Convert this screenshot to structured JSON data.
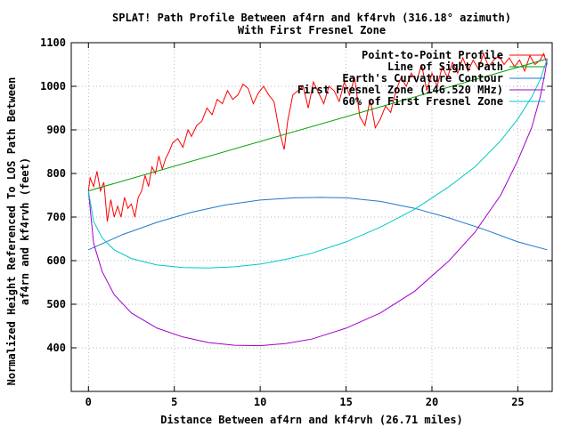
{
  "chart_data": {
    "type": "line",
    "title": "SPLAT! Path Profile Between af4rn and kf4rvh (316.18° azimuth)",
    "subtitle": "With First Fresnel Zone",
    "xlabel": "Distance Between af4rn and kf4rvh (26.71 miles)",
    "ylabel_line1": "Normalized Height Referenced To LOS Path Between",
    "ylabel_line2": "af4rn and kf4rvh (feet)",
    "xlim": [
      -1,
      27
    ],
    "ylim": [
      300,
      1100
    ],
    "xticks": [
      0,
      5,
      10,
      15,
      20,
      25
    ],
    "yticks": [
      400,
      500,
      600,
      700,
      800,
      900,
      1000,
      1100
    ],
    "grid": true,
    "legend_position": "top-right",
    "series": [
      {
        "name": "Point-to-Point Profile",
        "color": "#ff0000",
        "x": [
          0,
          0.1,
          0.3,
          0.5,
          0.7,
          0.9,
          1.1,
          1.3,
          1.5,
          1.7,
          1.9,
          2.1,
          2.3,
          2.5,
          2.7,
          2.9,
          3.1,
          3.3,
          3.5,
          3.7,
          3.9,
          4.1,
          4.3,
          4.5,
          4.7,
          4.9,
          5.2,
          5.5,
          5.8,
          6.0,
          6.3,
          6.6,
          6.9,
          7.2,
          7.5,
          7.8,
          8.1,
          8.4,
          8.7,
          9.0,
          9.3,
          9.6,
          9.9,
          10.2,
          10.5,
          10.8,
          11.1,
          11.4,
          11.6,
          11.9,
          12.2,
          12.5,
          12.8,
          13.1,
          13.4,
          13.7,
          14.0,
          14.3,
          14.6,
          14.9,
          15.2,
          15.5,
          15.8,
          16.1,
          16.4,
          16.7,
          17.0,
          17.3,
          17.6,
          17.9,
          18.2,
          18.5,
          18.8,
          19.1,
          19.4,
          19.7,
          20.0,
          20.3,
          20.6,
          20.9,
          21.2,
          21.5,
          21.8,
          22.1,
          22.4,
          22.7,
          23.0,
          23.3,
          23.6,
          23.9,
          24.2,
          24.5,
          24.8,
          25.1,
          25.4,
          25.7,
          26.0,
          26.3,
          26.5,
          26.71
        ],
        "values": [
          760,
          790,
          770,
          805,
          760,
          780,
          690,
          740,
          700,
          725,
          700,
          745,
          720,
          730,
          700,
          745,
          760,
          795,
          770,
          815,
          800,
          840,
          810,
          835,
          850,
          870,
          880,
          860,
          900,
          885,
          910,
          920,
          950,
          935,
          970,
          960,
          990,
          970,
          980,
          1005,
          995,
          960,
          985,
          1000,
          980,
          965,
          900,
          855,
          920,
          980,
          990,
          1000,
          950,
          1010,
          985,
          960,
          1000,
          990,
          965,
          1010,
          980,
          1020,
          930,
          910,
          970,
          905,
          925,
          955,
          940,
          990,
          1020,
          1000,
          1030,
          1010,
          1050,
          990,
          1030,
          1000,
          1045,
          1020,
          1055,
          1030,
          1065,
          1035,
          1060,
          1040,
          1075,
          1045,
          1060,
          1070,
          1050,
          1065,
          1045,
          1060,
          1035,
          1070,
          1050,
          1060,
          1075,
          1050
        ]
      },
      {
        "name": "Line of Sight Path",
        "color": "#00a000",
        "x": [
          0,
          26.71
        ],
        "values": [
          760,
          1063
        ]
      },
      {
        "name": "Earth's Curvature Contour",
        "color": "#1e78c8",
        "x": [
          0,
          2,
          4,
          6,
          8,
          10,
          12,
          13.5,
          15,
          17,
          19,
          21,
          23,
          25,
          26.71
        ],
        "values": [
          625,
          660,
          688,
          711,
          728,
          739,
          744,
          745,
          744,
          736,
          720,
          698,
          672,
          643,
          625
        ]
      },
      {
        "name": "First Fresnel Zone (146.520 MHz)",
        "color": "#a000c8",
        "x": [
          0,
          0.3,
          0.8,
          1.5,
          2.5,
          4,
          5.5,
          7,
          8.5,
          10,
          11.5,
          13,
          15,
          17,
          19,
          21,
          22.5,
          24,
          25,
          25.8,
          26.3,
          26.6,
          26.71
        ],
        "values": [
          760,
          640,
          575,
          522,
          480,
          445,
          425,
          412,
          406,
          405,
          410,
          420,
          445,
          480,
          530,
          600,
          665,
          750,
          830,
          905,
          975,
          1035,
          1063
        ]
      },
      {
        "name": "60% of First Fresnel Zone",
        "color": "#00c8c8",
        "x": [
          0,
          0.3,
          0.8,
          1.5,
          2.5,
          4,
          5.5,
          7,
          8.5,
          10,
          11.5,
          13,
          15,
          17,
          19,
          21,
          22.5,
          24,
          25,
          25.8,
          26.3,
          26.6,
          26.71
        ],
        "values": [
          760,
          690,
          652,
          625,
          605,
          590,
          584,
          583,
          586,
          592,
          603,
          617,
          643,
          677,
          718,
          770,
          815,
          875,
          925,
          975,
          1015,
          1050,
          1063
        ]
      }
    ]
  }
}
